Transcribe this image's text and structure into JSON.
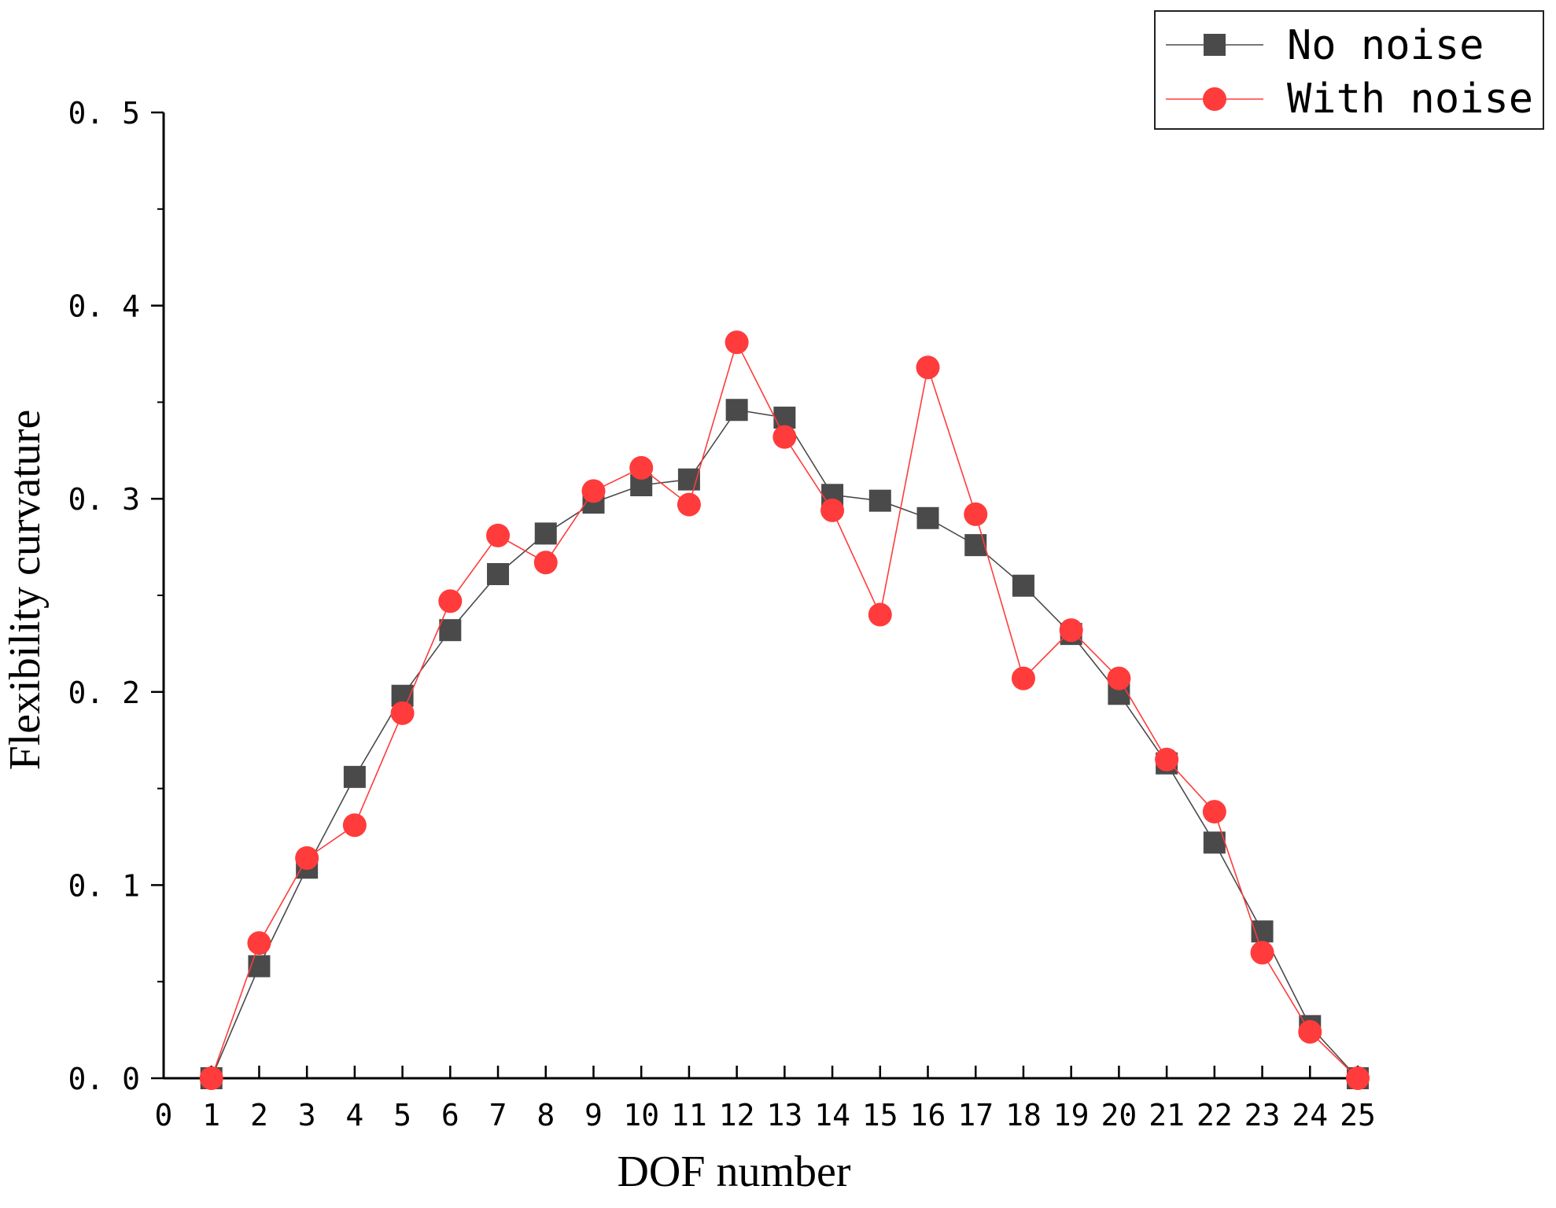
{
  "chart_data": {
    "type": "line",
    "title": "",
    "xlabel": "DOF number",
    "ylabel": "Flexibility curvature",
    "xlim": [
      0,
      25
    ],
    "ylim": [
      0.0,
      0.5
    ],
    "x_ticks": [
      0,
      1,
      2,
      3,
      4,
      5,
      6,
      7,
      8,
      9,
      10,
      11,
      12,
      13,
      14,
      15,
      16,
      17,
      18,
      19,
      20,
      21,
      22,
      23,
      24,
      25
    ],
    "x_tick_labels": [
      "0",
      "1",
      "2",
      "3",
      "4",
      "5",
      "6",
      "7",
      "8",
      "9",
      "10",
      "11",
      "12",
      "13",
      "14",
      "15",
      "16",
      "17",
      "18",
      "19",
      "20",
      "21",
      "22",
      "23",
      "24",
      "25"
    ],
    "y_ticks": [
      0.0,
      0.1,
      0.2,
      0.3,
      0.4,
      0.5
    ],
    "y_tick_labels": [
      "0. 0",
      "0. 1",
      "0. 2",
      "0. 3",
      "0. 4",
      "0. 5"
    ],
    "grid": false,
    "legend_position": "top-right",
    "x": [
      1,
      2,
      3,
      4,
      5,
      6,
      7,
      8,
      9,
      10,
      11,
      12,
      13,
      14,
      15,
      16,
      17,
      18,
      19,
      20,
      21,
      22,
      23,
      24,
      25
    ],
    "series": [
      {
        "name": "No noise",
        "color": "#4a4a4a",
        "marker": "square",
        "values": [
          0.0,
          0.058,
          0.109,
          0.156,
          0.198,
          0.232,
          0.261,
          0.282,
          0.298,
          0.307,
          0.31,
          0.346,
          0.342,
          0.302,
          0.299,
          0.29,
          0.276,
          0.255,
          0.23,
          0.199,
          0.163,
          0.122,
          0.076,
          0.027,
          0.0
        ]
      },
      {
        "name": "With noise",
        "color": "#ff3b3b",
        "marker": "circle",
        "values": [
          0.0,
          0.07,
          0.114,
          0.131,
          0.189,
          0.247,
          0.281,
          0.267,
          0.304,
          0.316,
          0.297,
          0.381,
          0.332,
          0.294,
          0.24,
          0.368,
          0.292,
          0.207,
          0.232,
          0.207,
          0.165,
          0.138,
          0.065,
          0.024,
          0.0
        ]
      }
    ]
  }
}
